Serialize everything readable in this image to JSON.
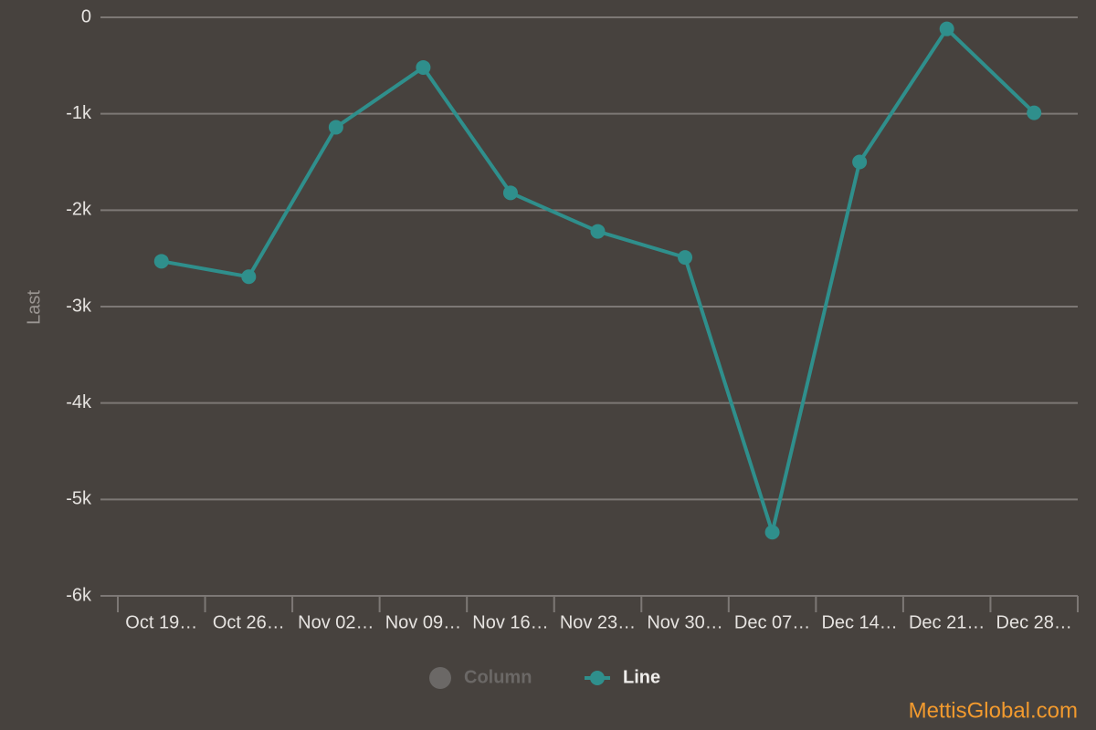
{
  "chart_data": {
    "type": "line",
    "y_label": "Last",
    "categories": [
      "Oct 19…",
      "Oct 26…",
      "Nov 02…",
      "Nov 09…",
      "Nov 16…",
      "Nov 23…",
      "Nov 30…",
      "Dec 07…",
      "Dec 14…",
      "Dec 21…",
      "Dec 28…"
    ],
    "series": [
      {
        "name": "Column",
        "color": "#6b6866",
        "visible": false,
        "values": [
          null,
          null,
          null,
          null,
          null,
          null,
          null,
          null,
          null,
          null,
          null
        ]
      },
      {
        "name": "Line",
        "color": "#2f8f8c",
        "visible": true,
        "values": [
          -2530,
          -2690,
          -1140,
          -520,
          -1820,
          -2220,
          -2490,
          -5340,
          -1500,
          -120,
          -990
        ]
      }
    ],
    "ylim": [
      -6000,
      0
    ],
    "yticks": [
      {
        "value": -6000,
        "label": "-6k"
      },
      {
        "value": -5000,
        "label": "-5k"
      },
      {
        "value": -4000,
        "label": "-4k"
      },
      {
        "value": -3000,
        "label": "-3k"
      },
      {
        "value": -2000,
        "label": "-2k"
      },
      {
        "value": -1000,
        "label": "-1k"
      },
      0
    ],
    "grid": true,
    "legend": "bottom",
    "watermark": "MettisGlobal.com"
  }
}
